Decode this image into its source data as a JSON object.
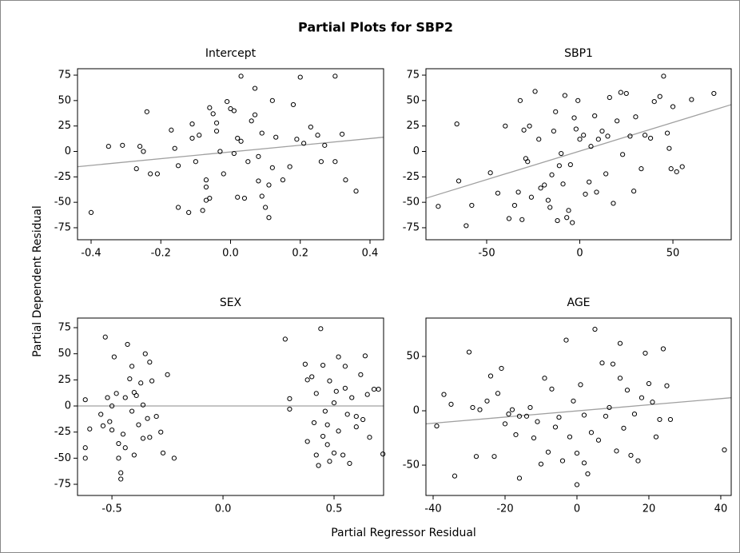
{
  "title": "Partial Plots for SBP2",
  "y_label": "Partial Dependent Residual",
  "x_label": "Partial Regressor Residual",
  "chart_data": [
    {
      "type": "scatter",
      "title": "Intercept",
      "color": "#000000",
      "fit_color": "#a0a0a0",
      "x": [
        -0.4,
        -0.35,
        -0.31,
        -0.27,
        -0.26,
        -0.25,
        -0.24,
        -0.23,
        -0.21,
        -0.17,
        -0.16,
        -0.15,
        -0.15,
        -0.12,
        -0.11,
        -0.11,
        -0.1,
        -0.09,
        -0.08,
        -0.07,
        -0.07,
        -0.07,
        -0.06,
        -0.06,
        -0.05,
        -0.04,
        -0.04,
        -0.03,
        -0.02,
        -0.01,
        0.0,
        0.01,
        0.01,
        0.02,
        0.02,
        0.03,
        0.03,
        0.04,
        0.05,
        0.06,
        0.07,
        0.07,
        0.08,
        0.08,
        0.09,
        0.09,
        0.1,
        0.11,
        0.11,
        0.12,
        0.12,
        0.13,
        0.15,
        0.17,
        0.18,
        0.19,
        0.2,
        0.21,
        0.23,
        0.25,
        0.26,
        0.27,
        0.3,
        0.3,
        0.32,
        0.33,
        0.36
      ],
      "y": [
        -60,
        5,
        6,
        -17,
        5,
        0,
        39,
        -22,
        -22,
        21,
        3,
        -55,
        -14,
        -60,
        27,
        13,
        -10,
        16,
        -58,
        -35,
        -28,
        -48,
        43,
        -46,
        37,
        28,
        20,
        0,
        -22,
        49,
        42,
        -2,
        40,
        13,
        -45,
        74,
        10,
        -46,
        -10,
        30,
        62,
        36,
        -5,
        -29,
        18,
        -44,
        -55,
        -65,
        -33,
        50,
        -16,
        14,
        -28,
        -15,
        46,
        12,
        73,
        8,
        24,
        16,
        -10,
        6,
        74,
        -10,
        17,
        -28,
        -39
      ],
      "fit": {
        "x": [
          -0.439,
          0.439
        ],
        "y": [
          -15,
          14
        ]
      },
      "xlim": [
        -0.439,
        0.439
      ],
      "ylim": [
        -86.8,
        81.3
      ],
      "xticks": [
        -0.4,
        -0.2,
        {
          "value": 0,
          "label": "0.0"
        },
        0.2,
        0.4
      ],
      "yticks": [
        -75,
        -50,
        -25,
        0,
        25,
        50,
        75
      ]
    },
    {
      "type": "scatter",
      "title": "SBP1",
      "color": "#000000",
      "fit_color": "#a0a0a0",
      "x": [
        -76,
        -66,
        -65,
        -61,
        -58,
        -48,
        -44,
        -40,
        -38,
        -35,
        -33,
        -32,
        -31,
        -30,
        -29,
        -28,
        -27,
        -26,
        -24,
        -22,
        -21,
        -19,
        -17,
        -16,
        -15,
        -14,
        -13,
        -12,
        -11,
        -10,
        -9,
        -8,
        -7,
        -6,
        -5,
        -4,
        -3,
        -2,
        -1,
        0,
        2,
        3,
        5,
        6,
        8,
        9,
        10,
        12,
        14,
        15,
        16,
        18,
        20,
        22,
        23,
        25,
        27,
        29,
        30,
        33,
        35,
        38,
        40,
        43,
        45,
        47,
        48,
        49,
        50,
        52,
        55,
        60,
        72
      ],
      "y": [
        -54,
        27,
        -29,
        -73,
        -53,
        -21,
        -41,
        25,
        -66,
        -53,
        -40,
        50,
        -67,
        21,
        -7,
        -10,
        25,
        -45,
        59,
        12,
        -36,
        -33,
        -48,
        -55,
        -23,
        20,
        39,
        -68,
        -14,
        -2,
        -32,
        55,
        -65,
        -58,
        -13,
        -70,
        33,
        22,
        50,
        12,
        16,
        -42,
        -30,
        5,
        35,
        -40,
        12,
        20,
        -22,
        15,
        53,
        -51,
        30,
        58,
        -3,
        57,
        15,
        -39,
        34,
        -17,
        16,
        13,
        49,
        54,
        74,
        18,
        3,
        -17,
        44,
        -20,
        -15,
        51,
        57
      ],
      "fit": {
        "x": [
          -82.6,
          81.3
        ],
        "y": [
          -46,
          46
        ]
      },
      "xlim": [
        -82.6,
        81.3
      ],
      "ylim": [
        -86.8,
        81.3
      ],
      "xticks": [
        -50,
        0,
        50
      ],
      "yticks": [
        -75,
        -50,
        -25,
        0,
        25,
        50,
        75
      ]
    },
    {
      "type": "scatter",
      "title": "SEX",
      "color": "#000000",
      "fit_color": "#a0a0a0",
      "x": [
        -0.62,
        -0.62,
        -0.62,
        -0.6,
        -0.55,
        -0.54,
        -0.53,
        -0.52,
        -0.51,
        -0.5,
        -0.49,
        -0.48,
        -0.47,
        -0.47,
        -0.46,
        -0.46,
        -0.45,
        -0.44,
        -0.43,
        -0.42,
        -0.41,
        -0.41,
        -0.4,
        -0.4,
        -0.38,
        -0.37,
        -0.36,
        -0.35,
        -0.34,
        -0.33,
        -0.33,
        -0.32,
        -0.3,
        -0.28,
        -0.27,
        -0.25,
        -0.22,
        -0.5,
        -0.44,
        -0.39,
        -0.36,
        0.28,
        0.3,
        0.3,
        0.37,
        0.38,
        0.38,
        0.4,
        0.41,
        0.42,
        0.42,
        0.44,
        0.45,
        0.45,
        0.46,
        0.47,
        0.48,
        0.48,
        0.5,
        0.51,
        0.52,
        0.52,
        0.54,
        0.55,
        0.56,
        0.57,
        0.58,
        0.6,
        0.6,
        0.62,
        0.63,
        0.64,
        0.65,
        0.66,
        0.68,
        0.7,
        0.72,
        0.43,
        0.5,
        0.55,
        0.47
      ],
      "y": [
        6,
        -40,
        -50,
        -22,
        -8,
        -19,
        66,
        8,
        -15,
        -23,
        47,
        12,
        -36,
        -50,
        -64,
        -70,
        -27,
        8,
        59,
        26,
        38,
        -5,
        13,
        -47,
        -18,
        22,
        1,
        50,
        -12,
        42,
        -30,
        24,
        -10,
        -25,
        -45,
        30,
        -50,
        0,
        -40,
        10,
        -31,
        64,
        7,
        -3,
        40,
        25,
        -34,
        28,
        -16,
        12,
        -47,
        74,
        39,
        -29,
        -5,
        -37,
        -53,
        24,
        3,
        14,
        47,
        -24,
        -47,
        17,
        -8,
        -55,
        8,
        -20,
        -10,
        30,
        -13,
        48,
        11,
        -30,
        16,
        16,
        -46,
        -57,
        -45,
        38,
        -18
      ],
      "fit": {
        "x": [
          -0.655,
          0.723
        ],
        "y": [
          0,
          0
        ]
      },
      "xlim": [
        -0.655,
        0.723
      ],
      "ylim": [
        -85.7,
        84.2
      ],
      "xticks": [
        -0.5,
        {
          "value": 0,
          "label": "0.0"
        },
        0.5
      ],
      "yticks": [
        -75,
        -50,
        -25,
        0,
        25,
        50,
        75
      ]
    },
    {
      "type": "scatter",
      "title": "AGE",
      "color": "#000000",
      "fit_color": "#a0a0a0",
      "x": [
        -39,
        -37,
        -35,
        -34,
        -30,
        -29,
        -28,
        -27,
        -25,
        -24,
        -23,
        -22,
        -21,
        -20,
        -19,
        -18,
        -17,
        -16,
        -14,
        -13,
        -12,
        -11,
        -10,
        -9,
        -8,
        -7,
        -6,
        -5,
        -4,
        -3,
        -2,
        -1,
        0,
        1,
        2,
        3,
        4,
        5,
        6,
        7,
        8,
        9,
        10,
        11,
        12,
        13,
        14,
        15,
        16,
        17,
        18,
        19,
        20,
        21,
        22,
        23,
        24,
        25,
        26,
        41,
        -16,
        0,
        2,
        12
      ],
      "y": [
        -14,
        15,
        6,
        -60,
        54,
        3,
        -42,
        1,
        9,
        32,
        -42,
        16,
        39,
        -12,
        -3,
        1,
        -22,
        -5,
        -5,
        3,
        -25,
        -10,
        -49,
        30,
        -38,
        20,
        -15,
        -6,
        -46,
        65,
        -24,
        9,
        -39,
        24,
        -4,
        -58,
        -20,
        75,
        -27,
        44,
        -5,
        3,
        43,
        -37,
        62,
        -16,
        19,
        -41,
        -3,
        -46,
        12,
        53,
        25,
        8,
        -24,
        -8,
        57,
        23,
        -8,
        -36,
        -62,
        -68,
        -48,
        30
      ],
      "fit": {
        "x": [
          -42,
          42.9
        ],
        "y": [
          -12,
          12
        ]
      },
      "xlim": [
        -42,
        42.9
      ],
      "ylim": [
        -77.9,
        85.3
      ],
      "xticks": [
        -40,
        -20,
        0,
        20,
        40
      ],
      "yticks": [
        -50,
        0,
        50
      ]
    }
  ]
}
